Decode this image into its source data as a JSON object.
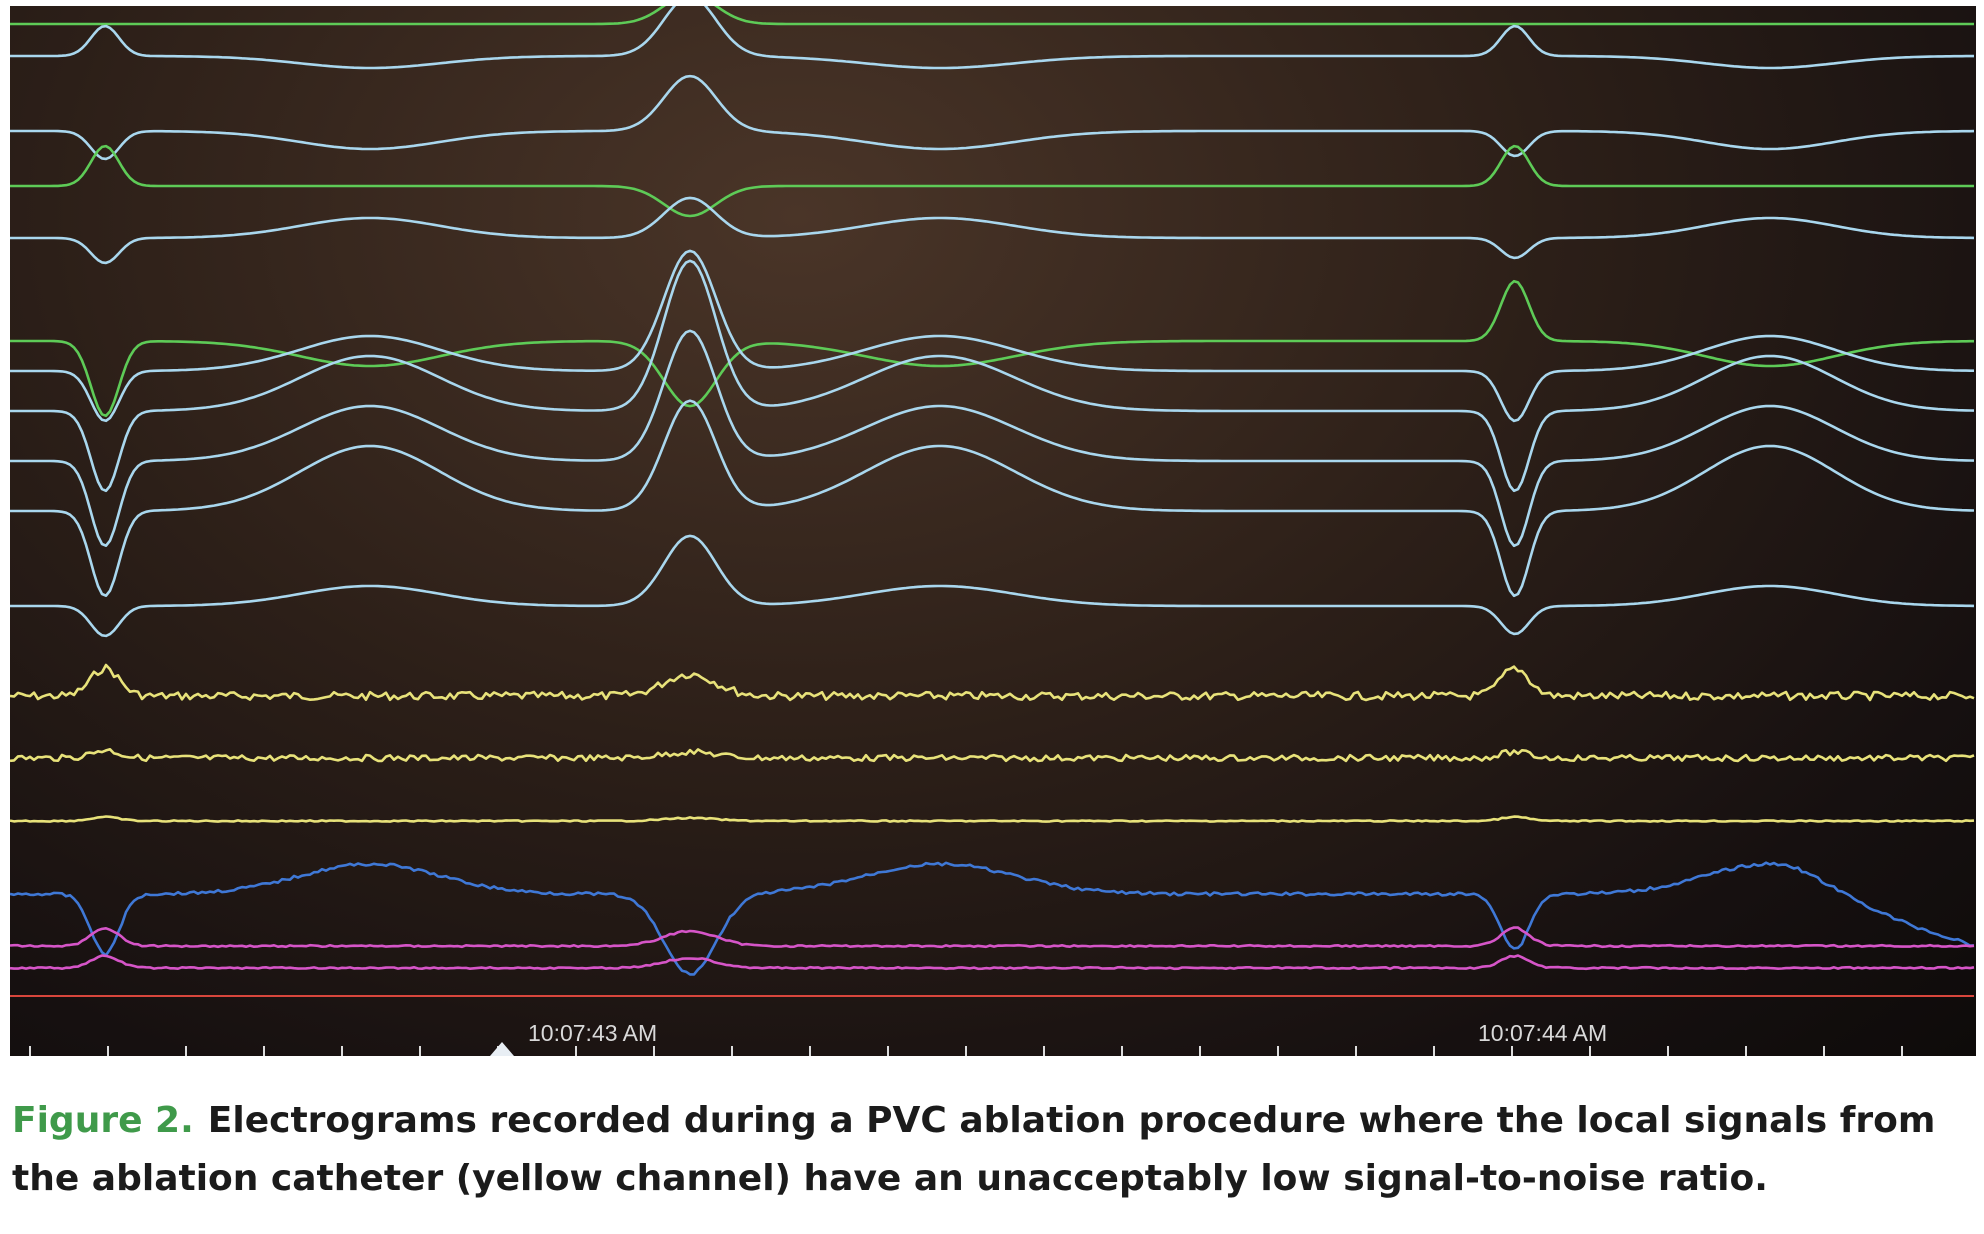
{
  "figure": {
    "timestamps": [
      "10:07:43 AM",
      "10:07:44 AM"
    ],
    "colors": {
      "background": "#2c1f18",
      "surface_channel_light_blue": "#a9d7ee",
      "surface_channel_green": "#5ecb57",
      "ablation_channel_yellow": "#e8e27a",
      "blue_channel": "#3f78d6",
      "magenta_channel": "#d655c8",
      "red_channel": "#d8463c",
      "axis": "#dddddd"
    },
    "channels": [
      {
        "color_name": "green"
      },
      {
        "color_name": "light-blue"
      },
      {
        "color_name": "light-blue"
      },
      {
        "color_name": "green"
      },
      {
        "color_name": "light-blue"
      },
      {
        "color_name": "green"
      },
      {
        "color_name": "light-blue"
      },
      {
        "color_name": "light-blue"
      },
      {
        "color_name": "light-blue"
      },
      {
        "color_name": "light-blue"
      },
      {
        "color_name": "light-blue"
      },
      {
        "color_name": "yellow"
      },
      {
        "color_name": "yellow"
      },
      {
        "color_name": "yellow"
      },
      {
        "color_name": "blue"
      },
      {
        "color_name": "magenta"
      },
      {
        "color_name": "magenta"
      },
      {
        "color_name": "red"
      }
    ]
  },
  "caption": {
    "label": "Figure 2.",
    "text": "Electrograms recorded during a PVC ablation procedure where the local signals from the ablation catheter (yellow channel) have an unacceptably low signal-to-noise ratio."
  }
}
